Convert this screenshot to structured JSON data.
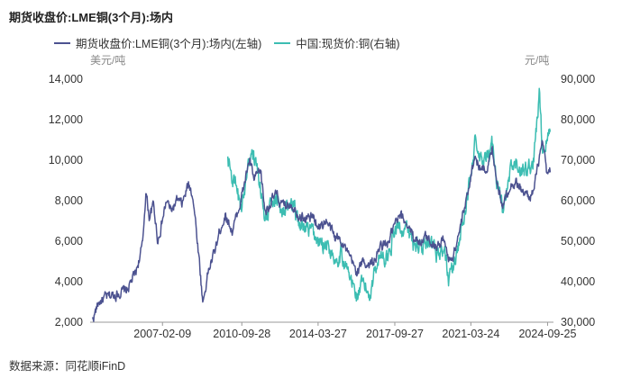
{
  "title": "期货收盘价:LME铜(3个月):场内",
  "source_text": "数据来源：同花顺iFinD",
  "colors": {
    "lme": "#4c5290",
    "china": "#3cbdb2",
    "axis": "#999999",
    "tick_text": "#333333"
  },
  "chart_data": {
    "type": "line",
    "title": "期货收盘价:LME铜(3个月):场内",
    "left_unit": "美元/吨",
    "right_unit": "元/吨",
    "x_tick_labels": [
      "2007-02-09",
      "2010-09-28",
      "2014-03-27",
      "2017-09-27",
      "2021-03-24",
      "2024-09-25"
    ],
    "x_range": [
      2003.8,
      2025.0
    ],
    "x_tick_positions": [
      2007.11,
      2010.74,
      2014.23,
      2017.74,
      2021.22,
      2024.73
    ],
    "left_ylim": [
      2000,
      14000
    ],
    "left_ticks": [
      "2,000",
      "4,000",
      "6,000",
      "8,000",
      "10,000",
      "12,000",
      "14,000"
    ],
    "right_ylim": [
      30000,
      90000
    ],
    "right_ticks": [
      "30,000",
      "40,000",
      "50,000",
      "60,000",
      "70,000",
      "80,000",
      "90,000"
    ],
    "series": [
      {
        "name": "期货收盘价:LME铜(3个月):场内(左轴)",
        "axis": "left",
        "x": [
          2003.9,
          2004.2,
          2004.5,
          2005.0,
          2005.5,
          2005.9,
          2006.2,
          2006.35,
          2006.5,
          2006.7,
          2006.9,
          2007.1,
          2007.3,
          2007.5,
          2007.8,
          2008.0,
          2008.3,
          2008.5,
          2008.8,
          2008.95,
          2009.0,
          2009.2,
          2009.5,
          2009.8,
          2010.0,
          2010.3,
          2010.5,
          2010.8,
          2011.0,
          2011.1,
          2011.3,
          2011.6,
          2011.8,
          2012.0,
          2012.3,
          2012.6,
          2013.0,
          2013.3,
          2013.6,
          2014.0,
          2014.3,
          2014.6,
          2015.0,
          2015.3,
          2015.6,
          2015.9,
          2016.0,
          2016.3,
          2016.6,
          2016.9,
          2017.1,
          2017.4,
          2017.7,
          2018.0,
          2018.3,
          2018.6,
          2018.9,
          2019.2,
          2019.5,
          2019.8,
          2020.0,
          2020.2,
          2020.4,
          2020.7,
          2021.0,
          2021.2,
          2021.4,
          2021.7,
          2022.0,
          2022.2,
          2022.5,
          2022.7,
          2023.0,
          2023.3,
          2023.6,
          2023.9,
          2024.1,
          2024.3,
          2024.5,
          2024.7,
          2024.85
        ],
        "values": [
          2100,
          3000,
          3200,
          3400,
          3600,
          4500,
          5800,
          8500,
          7200,
          7800,
          6000,
          7000,
          8000,
          7500,
          8000,
          7800,
          8800,
          8300,
          5000,
          3000,
          3200,
          4500,
          5500,
          6800,
          7300,
          6500,
          7200,
          8500,
          9600,
          10000,
          9000,
          9500,
          7500,
          7800,
          8300,
          7700,
          7900,
          7400,
          7100,
          7200,
          6700,
          7000,
          6200,
          6100,
          5300,
          4700,
          4500,
          5000,
          4800,
          5200,
          5800,
          5800,
          6700,
          7200,
          6900,
          6200,
          6000,
          6200,
          5900,
          5800,
          6200,
          5000,
          5300,
          6500,
          7900,
          9200,
          10200,
          9500,
          9700,
          10500,
          8500,
          7800,
          8800,
          8900,
          8400,
          8200,
          8500,
          9800,
          10800,
          9300,
          9400
        ]
      },
      {
        "name": "中国:现货价:铜(右轴)",
        "axis": "right",
        "x": [
          2010.1,
          2010.25,
          2010.5,
          2010.75,
          2010.85,
          2011.0,
          2011.2,
          2011.5,
          2011.8,
          2012.0,
          2012.3,
          2012.6,
          2013.0,
          2013.3,
          2013.6,
          2014.0,
          2014.3,
          2014.6,
          2015.0,
          2015.3,
          2015.6,
          2015.9,
          2016.0,
          2016.3,
          2016.6,
          2016.9,
          2017.1,
          2017.4,
          2017.7,
          2018.0,
          2018.3,
          2018.6,
          2018.9,
          2019.2,
          2019.5,
          2019.8,
          2020.0,
          2020.2,
          2020.4,
          2020.7,
          2021.0,
          2021.2,
          2021.4,
          2021.7,
          2022.0,
          2022.2,
          2022.5,
          2022.7,
          2023.0,
          2023.3,
          2023.6,
          2023.9,
          2024.1,
          2024.25,
          2024.35,
          2024.5,
          2024.7,
          2024.85
        ],
        "values": [
          70000,
          67000,
          62000,
          58000,
          62000,
          70000,
          72000,
          66000,
          56000,
          58000,
          60000,
          58000,
          59000,
          55000,
          53000,
          52000,
          49000,
          50000,
          46000,
          47000,
          42000,
          38000,
          36500,
          39000,
          37000,
          45000,
          47000,
          46000,
          52000,
          54000,
          52000,
          49000,
          49500,
          48500,
          47500,
          47000,
          48000,
          41000,
          43000,
          51000,
          57000,
          68000,
          74000,
          69000,
          70000,
          74000,
          62000,
          57000,
          66000,
          69000,
          67000,
          68000,
          70000,
          80000,
          86000,
          72000,
          75000,
          77000
        ]
      }
    ]
  }
}
